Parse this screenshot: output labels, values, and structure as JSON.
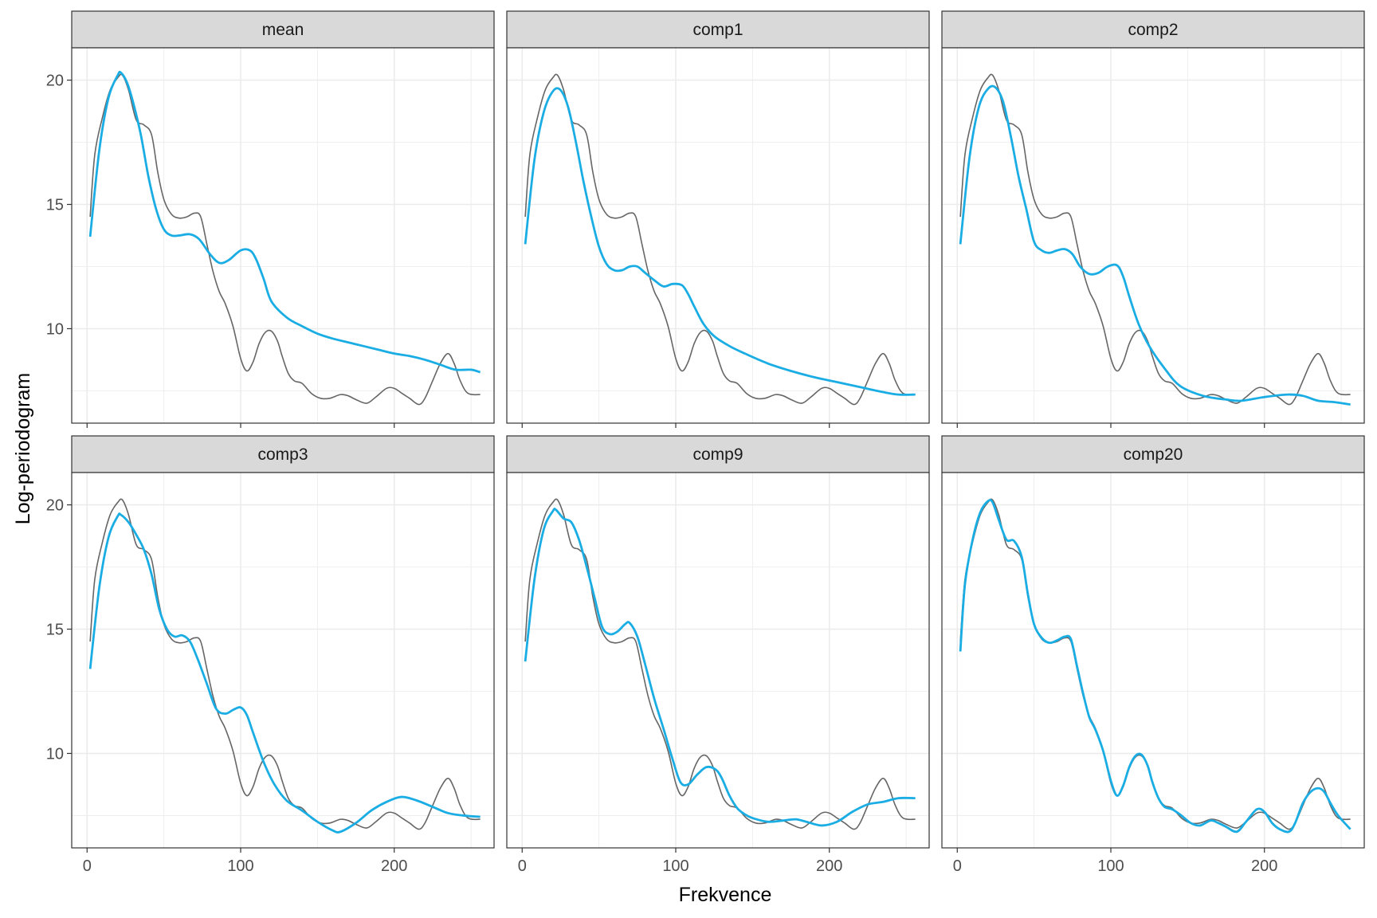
{
  "chart_data": {
    "type": "line",
    "layout": "facet-grid-2x3",
    "xlabel": "Frekvence",
    "ylabel": "Log-periodogram",
    "xlim": [
      -10,
      265
    ],
    "ylim": [
      6.2,
      21.3
    ],
    "x_ticks": [
      0,
      100,
      200
    ],
    "y_ticks": [
      10,
      15,
      20
    ],
    "grid": true,
    "colors": {
      "reference": "#666666",
      "fitted": "#1AADE4",
      "strip_bg": "#D9D9D9",
      "grid": "#EBEBEB",
      "border": "#333333"
    },
    "reference_series": {
      "name": "log-periodogram",
      "x": [
        2,
        5,
        10,
        15,
        20,
        23,
        27,
        32,
        37,
        42,
        46,
        50,
        55,
        60,
        65,
        70,
        74,
        78,
        82,
        86,
        90,
        95,
        100,
        104,
        108,
        112,
        116,
        120,
        124,
        127,
        131,
        135,
        140,
        146,
        152,
        158,
        165,
        170,
        175,
        182,
        188,
        195,
        200,
        205,
        210,
        216,
        220,
        225,
        230,
        235,
        239,
        243,
        248,
        256
      ],
      "y": [
        14.5,
        17.0,
        18.5,
        19.6,
        20.1,
        20.2,
        19.6,
        18.4,
        18.2,
        17.8,
        16.3,
        15.2,
        14.6,
        14.45,
        14.5,
        14.65,
        14.5,
        13.4,
        12.3,
        11.5,
        11.0,
        10.1,
        8.8,
        8.3,
        8.65,
        9.4,
        9.85,
        9.9,
        9.5,
        8.9,
        8.2,
        7.9,
        7.8,
        7.4,
        7.2,
        7.2,
        7.35,
        7.3,
        7.15,
        7.0,
        7.25,
        7.6,
        7.6,
        7.4,
        7.2,
        6.95,
        7.2,
        7.9,
        8.6,
        9.0,
        8.6,
        7.9,
        7.4,
        7.35
      ]
    },
    "panels": [
      {
        "label": "mean",
        "fitted": {
          "x": [
            2,
            8,
            14,
            20,
            22,
            26,
            30,
            35,
            40,
            45,
            50,
            55,
            60,
            67,
            73,
            80,
            86,
            92,
            100,
            106,
            110,
            115,
            120,
            130,
            140,
            150,
            160,
            170,
            180,
            190,
            200,
            210,
            220,
            230,
            240,
            250,
            256
          ],
          "y": [
            13.7,
            17.2,
            19.3,
            20.2,
            20.3,
            19.9,
            19.1,
            17.8,
            16.1,
            14.8,
            14.0,
            13.75,
            13.75,
            13.8,
            13.6,
            13.0,
            12.65,
            12.75,
            13.15,
            13.15,
            12.8,
            12.0,
            11.1,
            10.45,
            10.1,
            9.8,
            9.6,
            9.45,
            9.3,
            9.15,
            9.0,
            8.9,
            8.75,
            8.55,
            8.35,
            8.35,
            8.25
          ]
        }
      },
      {
        "label": "comp1",
        "fitted": {
          "x": [
            2,
            8,
            14,
            20,
            25,
            30,
            35,
            40,
            45,
            50,
            55,
            60,
            65,
            70,
            75,
            80,
            86,
            92,
            98,
            104,
            108,
            112,
            118,
            125,
            135,
            145,
            160,
            175,
            190,
            205,
            220,
            235,
            245,
            256
          ],
          "y": [
            13.4,
            16.8,
            18.7,
            19.55,
            19.6,
            18.9,
            17.5,
            15.9,
            14.5,
            13.3,
            12.6,
            12.35,
            12.35,
            12.5,
            12.5,
            12.25,
            11.95,
            11.7,
            11.8,
            11.75,
            11.4,
            10.9,
            10.2,
            9.7,
            9.3,
            9.0,
            8.6,
            8.3,
            8.05,
            7.85,
            7.65,
            7.45,
            7.35,
            7.35
          ]
        }
      },
      {
        "label": "comp2",
        "fitted": {
          "x": [
            2,
            8,
            14,
            20,
            25,
            30,
            35,
            40,
            45,
            50,
            55,
            60,
            65,
            70,
            75,
            80,
            86,
            92,
            98,
            104,
            108,
            112,
            118,
            125,
            135,
            145,
            160,
            175,
            185,
            200,
            215,
            225,
            235,
            245,
            256
          ],
          "y": [
            13.4,
            16.9,
            18.9,
            19.65,
            19.7,
            19.1,
            17.7,
            16.1,
            14.8,
            13.5,
            13.15,
            13.05,
            13.15,
            13.2,
            13.0,
            12.5,
            12.2,
            12.25,
            12.5,
            12.55,
            12.1,
            11.3,
            10.2,
            9.3,
            8.4,
            7.7,
            7.3,
            7.15,
            7.1,
            7.25,
            7.35,
            7.3,
            7.1,
            7.05,
            6.95
          ]
        }
      },
      {
        "label": "comp3",
        "fitted": {
          "x": [
            2,
            8,
            14,
            20,
            22,
            27,
            32,
            37,
            42,
            47,
            52,
            57,
            62,
            67,
            72,
            78,
            84,
            90,
            95,
            100,
            104,
            108,
            115,
            122,
            130,
            140,
            150,
            160,
            165,
            175,
            185,
            195,
            205,
            215,
            225,
            235,
            245,
            256
          ],
          "y": [
            13.4,
            16.7,
            18.7,
            19.55,
            19.6,
            19.3,
            18.8,
            18.2,
            17.2,
            15.8,
            15.0,
            14.7,
            14.75,
            14.5,
            13.8,
            12.8,
            11.8,
            11.6,
            11.75,
            11.85,
            11.55,
            10.85,
            9.65,
            8.75,
            8.1,
            7.7,
            7.25,
            6.9,
            6.85,
            7.2,
            7.7,
            8.05,
            8.25,
            8.1,
            7.85,
            7.6,
            7.5,
            7.45
          ]
        }
      },
      {
        "label": "comp9",
        "fitted": {
          "x": [
            2,
            8,
            14,
            20,
            22,
            27,
            32,
            37,
            42,
            47,
            52,
            57,
            62,
            67,
            70,
            75,
            80,
            86,
            92,
            98,
            103,
            108,
            114,
            120,
            126,
            130,
            135,
            140,
            145,
            150,
            160,
            170,
            178,
            185,
            195,
            205,
            215,
            225,
            235,
            245,
            256
          ],
          "y": [
            13.7,
            17.0,
            19.0,
            19.75,
            19.8,
            19.45,
            19.3,
            18.6,
            17.5,
            16.3,
            15.1,
            14.8,
            14.9,
            15.2,
            15.25,
            14.7,
            13.6,
            12.2,
            11.0,
            9.75,
            8.85,
            8.75,
            9.15,
            9.45,
            9.35,
            9.0,
            8.3,
            7.8,
            7.55,
            7.4,
            7.25,
            7.3,
            7.35,
            7.25,
            7.1,
            7.25,
            7.65,
            7.95,
            8.05,
            8.2,
            8.2
          ]
        }
      },
      {
        "label": "comp20",
        "fitted": {
          "x": [
            2,
            5,
            10,
            15,
            20,
            23,
            27,
            32,
            37,
            42,
            46,
            50,
            55,
            60,
            65,
            70,
            74,
            78,
            82,
            86,
            90,
            95,
            100,
            104,
            108,
            112,
            116,
            120,
            124,
            127,
            131,
            135,
            140,
            146,
            152,
            158,
            165,
            170,
            175,
            182,
            188,
            195,
            200,
            205,
            210,
            216,
            220,
            225,
            230,
            235,
            239,
            243,
            248,
            256
          ],
          "y": [
            14.1,
            16.8,
            18.6,
            19.7,
            20.15,
            20.1,
            19.4,
            18.6,
            18.55,
            17.9,
            16.4,
            15.2,
            14.65,
            14.45,
            14.55,
            14.7,
            14.6,
            13.5,
            12.4,
            11.45,
            10.95,
            10.1,
            8.9,
            8.3,
            8.7,
            9.45,
            9.9,
            9.95,
            9.5,
            8.85,
            8.2,
            7.85,
            7.75,
            7.5,
            7.2,
            7.1,
            7.3,
            7.2,
            7.05,
            6.85,
            7.25,
            7.75,
            7.65,
            7.2,
            6.95,
            6.85,
            7.2,
            8.0,
            8.45,
            8.6,
            8.45,
            8.0,
            7.5,
            6.95
          ]
        }
      }
    ]
  }
}
